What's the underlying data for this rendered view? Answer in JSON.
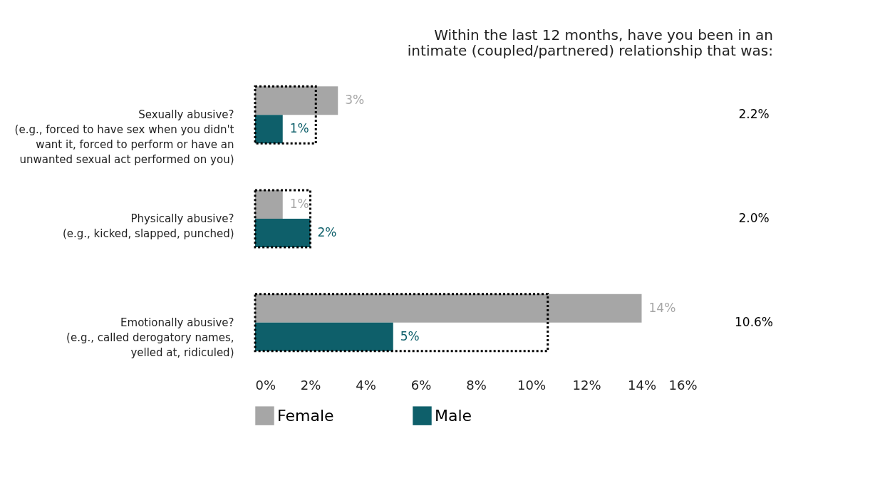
{
  "chart_data": {
    "type": "bar",
    "orientation": "horizontal",
    "title": "Within the last 12 months, have you been in an\nintimate (coupled/partnered) relationship that was:",
    "categories": [
      "Sexually abusive?\n(e.g., forced to have sex when you didn't\nwant it, forced to perform or have an\nunwanted sexual act performed on you)",
      "Physically abusive?\n(e.g., kicked, slapped, punched)",
      "Emotionally abusive?\n(e.g., called derogatory names,\nyelled at, ridiculed)"
    ],
    "series": [
      {
        "name": "Female",
        "color": "#a6a6a6",
        "values": [
          3,
          1,
          14
        ],
        "value_labels": [
          "3%",
          "1%",
          "14%"
        ]
      },
      {
        "name": "Male",
        "color": "#0e5f6a",
        "values": [
          1,
          2,
          5
        ],
        "value_labels": [
          "1%",
          "2%",
          "5%"
        ]
      },
      {
        "color": "#000000",
        "line_style": "dotted",
        "values": [
          2.2,
          2.0,
          10.6
        ],
        "value_labels": [
          "2.2%",
          "2.0%",
          "10.6%"
        ]
      }
    ],
    "xlim": [
      0,
      16
    ],
    "xticks": [
      {
        "value": 0,
        "label": "0%"
      },
      {
        "value": 2,
        "label": "2%"
      },
      {
        "value": 4,
        "label": "4%"
      },
      {
        "value": 6,
        "label": "6%"
      },
      {
        "value": 8,
        "label": "8%"
      },
      {
        "value": 10,
        "label": "10%"
      },
      {
        "value": 12,
        "label": "12%"
      },
      {
        "value": 14,
        "label": "14%"
      },
      {
        "value": 16,
        "label": "16%"
      }
    ],
    "grid": false,
    "legend": "bottom"
  }
}
